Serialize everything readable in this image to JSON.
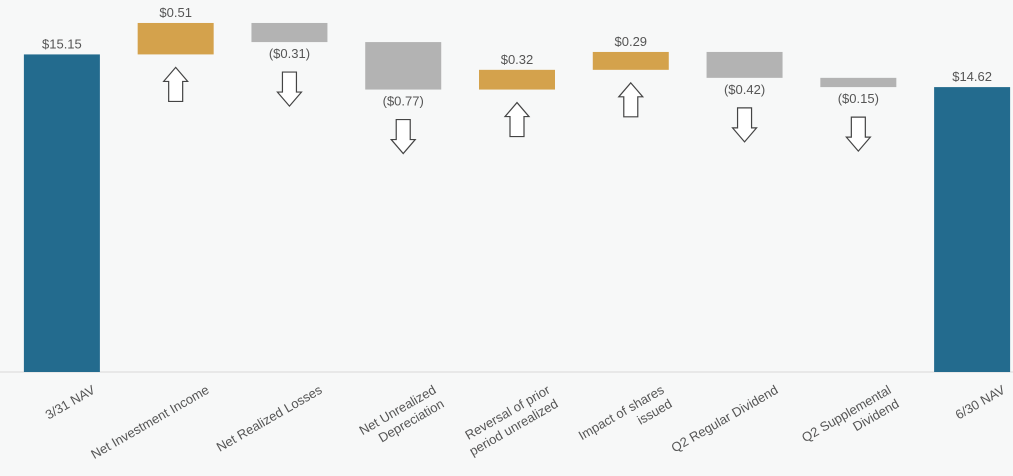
{
  "chart_data": {
    "type": "waterfall",
    "categories": [
      "3/31 NAV",
      "Net Investment Income",
      "Net Realized Losses",
      "Net Unrealized Depreciation",
      "Reversal of prior period unrealized",
      "Impact of shares issued",
      "Q2 Regular Dividend",
      "Q2 Supplemental Dividend",
      "6/30 NAV"
    ],
    "values": [
      15.15,
      0.51,
      -0.31,
      -0.77,
      0.32,
      0.29,
      -0.42,
      -0.15,
      14.62
    ],
    "value_labels": [
      "$15.15",
      "$0.51",
      "($0.31)",
      "($0.77)",
      "$0.32",
      "$0.29",
      "($0.42)",
      "($0.15)",
      "$14.62"
    ],
    "colors": {
      "total": "#236b8e",
      "increase": "#d4a24c",
      "decrease": "#b3b3b3"
    },
    "ylim": [
      10,
      16
    ]
  }
}
